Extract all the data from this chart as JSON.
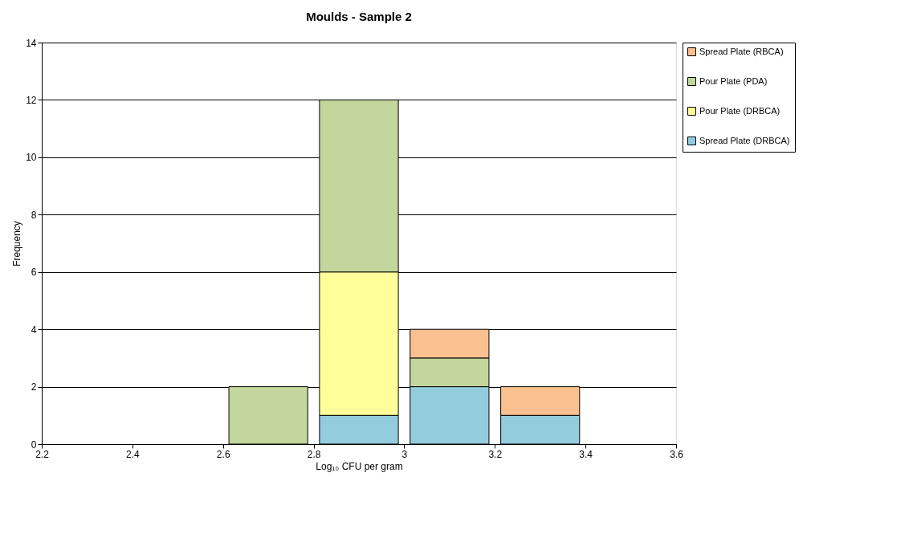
{
  "chart_data": {
    "type": "bar",
    "title": "Moulds - Sample 2",
    "xlabel": "Log₁₀ CFU per gram",
    "ylabel": "Frequency",
    "x": [
      2.7,
      2.9,
      3.1,
      3.3
    ],
    "stacked": true,
    "series": [
      {
        "name": "Spread Plate (DRBCA)",
        "color": "#93cddd",
        "values": [
          0,
          1,
          2,
          1
        ]
      },
      {
        "name": "Pour Plate (DRBCA)",
        "color": "#ffff99",
        "values": [
          0,
          5,
          0,
          0
        ]
      },
      {
        "name": "Pour Plate (PDA)",
        "color": "#c3d69b",
        "values": [
          2,
          6,
          1,
          0
        ]
      },
      {
        "name": "Spread Plate (RBCA)",
        "color": "#fac090",
        "values": [
          0,
          0,
          1,
          1
        ]
      }
    ],
    "xlim": [
      2.2,
      3.6
    ],
    "xticks": [
      2.2,
      2.4,
      2.6,
      2.8,
      3,
      3.2,
      3.4,
      3.6
    ],
    "ylim": [
      0,
      14
    ],
    "yticks": [
      0,
      2,
      4,
      6,
      8,
      10,
      12,
      14
    ],
    "grid": "y",
    "legend": "right"
  }
}
